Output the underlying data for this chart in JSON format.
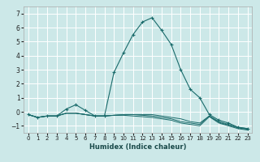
{
  "title": "",
  "xlabel": "Humidex (Indice chaleur)",
  "ylabel": "",
  "xlim": [
    -0.5,
    23.5
  ],
  "ylim": [
    -1.5,
    7.5
  ],
  "xticks": [
    0,
    1,
    2,
    3,
    4,
    5,
    6,
    7,
    8,
    9,
    10,
    11,
    12,
    13,
    14,
    15,
    16,
    17,
    18,
    19,
    20,
    21,
    22,
    23
  ],
  "yticks": [
    -1,
    0,
    1,
    2,
    3,
    4,
    5,
    6,
    7
  ],
  "bg_color": "#cce8e8",
  "line_color": "#1a6b6b",
  "grid_color": "#ffffff",
  "curves": [
    {
      "x": [
        0,
        1,
        2,
        3,
        4,
        5,
        6,
        7,
        8,
        9,
        10,
        11,
        12,
        13,
        14,
        15,
        16,
        17,
        18,
        19,
        20,
        21,
        22,
        23
      ],
      "y": [
        -0.2,
        -0.4,
        -0.3,
        -0.3,
        0.2,
        0.5,
        0.1,
        -0.3,
        -0.3,
        2.8,
        4.2,
        5.5,
        6.4,
        6.7,
        5.8,
        4.8,
        3.0,
        1.6,
        1.0,
        -0.2,
        -0.6,
        -0.8,
        -1.1,
        -1.2
      ],
      "marker": true
    },
    {
      "x": [
        0,
        1,
        2,
        3,
        4,
        5,
        6,
        7,
        8,
        9,
        10,
        11,
        12,
        13,
        14,
        15,
        16,
        17,
        18,
        19,
        20,
        21,
        22,
        23
      ],
      "y": [
        -0.2,
        -0.4,
        -0.3,
        -0.3,
        -0.1,
        -0.1,
        -0.2,
        -0.3,
        -0.3,
        -0.25,
        -0.2,
        -0.2,
        -0.2,
        -0.2,
        -0.3,
        -0.4,
        -0.5,
        -0.7,
        -0.8,
        -0.3,
        -0.7,
        -0.9,
        -1.1,
        -1.2
      ],
      "marker": false
    },
    {
      "x": [
        0,
        1,
        2,
        3,
        4,
        5,
        6,
        7,
        8,
        9,
        10,
        11,
        12,
        13,
        14,
        15,
        16,
        17,
        18,
        19,
        20,
        21,
        22,
        23
      ],
      "y": [
        -0.2,
        -0.4,
        -0.3,
        -0.3,
        -0.1,
        -0.1,
        -0.2,
        -0.3,
        -0.3,
        -0.25,
        -0.2,
        -0.2,
        -0.25,
        -0.3,
        -0.4,
        -0.5,
        -0.7,
        -0.8,
        -0.9,
        -0.3,
        -0.75,
        -0.95,
        -1.15,
        -1.25
      ],
      "marker": false
    },
    {
      "x": [
        0,
        1,
        2,
        3,
        4,
        5,
        6,
        7,
        8,
        9,
        10,
        11,
        12,
        13,
        14,
        15,
        16,
        17,
        18,
        19,
        20,
        21,
        22,
        23
      ],
      "y": [
        -0.2,
        -0.4,
        -0.3,
        -0.3,
        -0.1,
        -0.1,
        -0.2,
        -0.3,
        -0.3,
        -0.25,
        -0.25,
        -0.3,
        -0.35,
        -0.4,
        -0.5,
        -0.6,
        -0.8,
        -0.9,
        -1.0,
        -0.35,
        -0.8,
        -1.0,
        -1.2,
        -1.3
      ],
      "marker": false
    }
  ]
}
